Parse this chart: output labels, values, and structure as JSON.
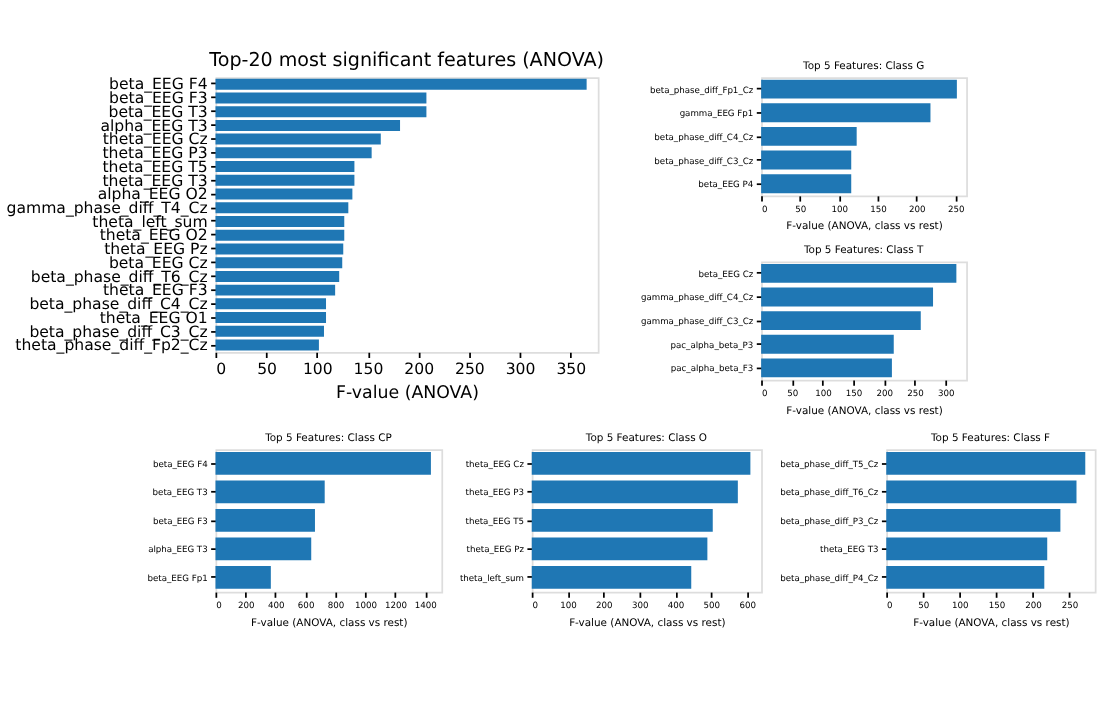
{
  "chart_data": [
    {
      "type": "bar",
      "orientation": "horizontal",
      "title": "Top-20 most significant features (ANOVA)",
      "xlabel": "F-value (ANOVA)",
      "color": "#1f77b4",
      "grid": false,
      "xlim": [
        0,
        377
      ],
      "xticks": [
        0,
        50,
        100,
        150,
        200,
        250,
        300,
        350
      ],
      "categories": [
        "beta_EEG F4",
        "beta_EEG F3",
        "beta_EEG T3",
        "alpha_EEG T3",
        "theta_EEG Cz",
        "theta_EEG P3",
        "theta_EEG T5",
        "theta_EEG T3",
        "alpha_EEG O2",
        "gamma_phase_diff_T4_Cz",
        "theta_left_sum",
        "theta_EEG O2",
        "theta_EEG Pz",
        "beta_EEG Cz",
        "beta_phase_diff_T6_Cz",
        "theta_EEG F3",
        "beta_phase_diff_C4_Cz",
        "theta_EEG O1",
        "beta_phase_diff_C3_Cz",
        "theta_phase_diff_Fp2_Cz"
      ],
      "values": [
        366,
        208,
        208,
        182,
        163,
        154,
        137,
        137,
        135,
        131,
        127,
        127,
        126,
        125,
        122,
        118,
        109,
        109,
        107,
        102
      ]
    },
    {
      "type": "bar",
      "orientation": "horizontal",
      "title": "Top 5 Features: Class G",
      "xlabel": "F-value (ANOVA, class vs rest)",
      "color": "#1f77b4",
      "grid": false,
      "xlim": [
        0,
        264
      ],
      "xticks": [
        0,
        50,
        100,
        150,
        200,
        250
      ],
      "categories": [
        "beta_phase_diff_Fp1_Cz",
        "gamma_EEG Fp1",
        "beta_phase_diff_C4_Cz",
        "beta_phase_diff_C3_Cz",
        "beta_EEG P4"
      ],
      "values": [
        252,
        218,
        123,
        116,
        116
      ]
    },
    {
      "type": "bar",
      "orientation": "horizontal",
      "title": "Top 5 Features: Class T",
      "xlabel": "F-value (ANOVA, class vs rest)",
      "color": "#1f77b4",
      "grid": false,
      "xlim": [
        0,
        334
      ],
      "xticks": [
        0,
        50,
        100,
        150,
        200,
        250,
        300
      ],
      "categories": [
        "beta_EEG Cz",
        "gamma_phase_diff_C4_Cz",
        "gamma_phase_diff_C3_Cz",
        "pac_alpha_beta_P3",
        "pac_alpha_beta_F3"
      ],
      "values": [
        318,
        280,
        260,
        216,
        213
      ]
    },
    {
      "type": "bar",
      "orientation": "horizontal",
      "title": "Top 5 Features: Class CP",
      "xlabel": "F-value (ANOVA, class vs rest)",
      "color": "#1f77b4",
      "grid": false,
      "xlim": [
        0,
        1510
      ],
      "xticks": [
        0,
        200,
        400,
        600,
        800,
        1000,
        1200,
        1400
      ],
      "categories": [
        "beta_EEG F4",
        "beta_EEG T3",
        "beta_EEG F3",
        "alpha_EEG T3",
        "beta_EEG Fp1"
      ],
      "values": [
        1440,
        730,
        665,
        640,
        370
      ]
    },
    {
      "type": "bar",
      "orientation": "horizontal",
      "title": "Top 5 Features: Class O",
      "xlabel": "F-value (ANOVA, class vs rest)",
      "color": "#1f77b4",
      "grid": false,
      "xlim": [
        0,
        640
      ],
      "xticks": [
        0,
        100,
        200,
        300,
        400,
        500,
        600
      ],
      "categories": [
        "theta_EEG Cz",
        "theta_EEG P3",
        "theta_EEG T5",
        "theta_EEG Pz",
        "theta_left_sum"
      ],
      "values": [
        610,
        575,
        505,
        490,
        445
      ]
    },
    {
      "type": "bar",
      "orientation": "horizontal",
      "title": "Top 5 Features: Class F",
      "xlabel": "F-value (ANOVA, class vs rest)",
      "color": "#1f77b4",
      "grid": false,
      "xlim": [
        0,
        285
      ],
      "xticks": [
        0,
        50,
        100,
        150,
        200,
        250
      ],
      "categories": [
        "beta_phase_diff_T5_Cz",
        "beta_phase_diff_T6_Cz",
        "beta_phase_diff_P3_Cz",
        "theta_EEG T3",
        "beta_phase_diff_P4_Cz"
      ],
      "values": [
        272,
        260,
        238,
        220,
        216
      ]
    }
  ]
}
